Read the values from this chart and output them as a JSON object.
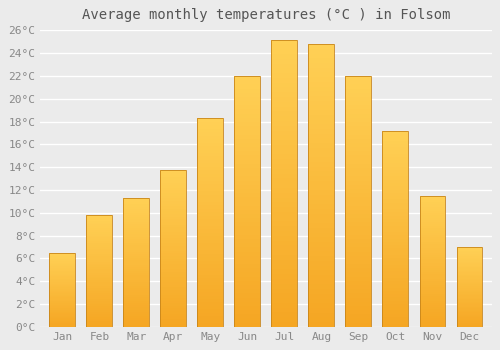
{
  "title": "Average monthly temperatures (°C ) in Folsom",
  "months": [
    "Jan",
    "Feb",
    "Mar",
    "Apr",
    "May",
    "Jun",
    "Jul",
    "Aug",
    "Sep",
    "Oct",
    "Nov",
    "Dec"
  ],
  "temperatures": [
    6.5,
    9.8,
    11.3,
    13.8,
    18.3,
    22.0,
    25.2,
    24.8,
    22.0,
    17.2,
    11.5,
    7.0
  ],
  "bar_color_bottom": "#F5A623",
  "bar_color_top": "#FFD055",
  "bar_edge_color": "#C8851A",
  "ylim": [
    0,
    26
  ],
  "yticks": [
    0,
    2,
    4,
    6,
    8,
    10,
    12,
    14,
    16,
    18,
    20,
    22,
    24,
    26
  ],
  "ytick_labels": [
    "0°C",
    "2°C",
    "4°C",
    "6°C",
    "8°C",
    "10°C",
    "12°C",
    "14°C",
    "16°C",
    "18°C",
    "20°C",
    "22°C",
    "24°C",
    "26°C"
  ],
  "background_color": "#ebebeb",
  "grid_color": "#ffffff",
  "title_fontsize": 10,
  "tick_fontsize": 8,
  "font_family": "monospace",
  "tick_color": "#888888",
  "title_color": "#555555",
  "bar_width": 0.7,
  "figsize": [
    5.0,
    3.5
  ],
  "dpi": 100
}
